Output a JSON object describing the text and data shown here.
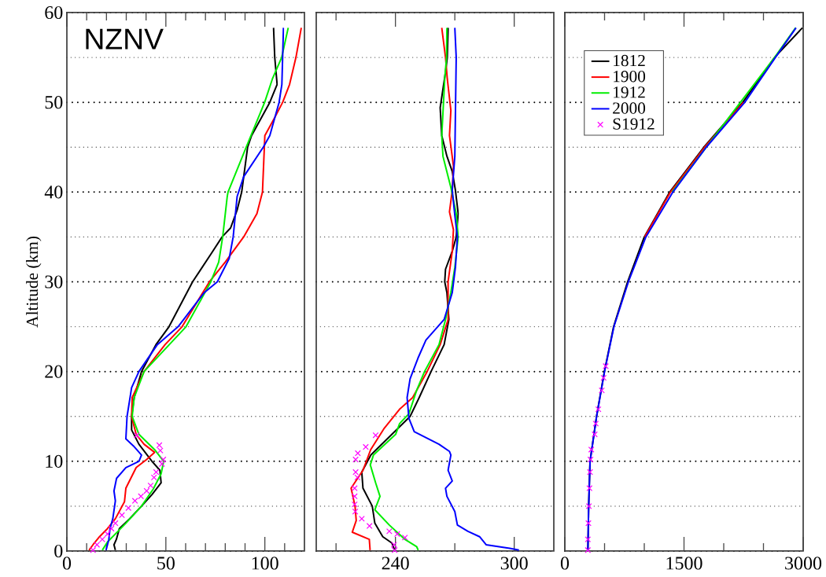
{
  "chart_data": [
    {
      "type": "line",
      "ylabel": "Altitude (km)",
      "annotations": [
        "NZNV"
      ],
      "xlim": [
        0,
        120
      ],
      "ylim": [
        0,
        60
      ],
      "xticks": [
        0,
        {
          "value": 10,
          "label": null
        },
        {
          "value": 20,
          "label": null
        },
        {
          "value": 30,
          "label": null
        },
        {
          "value": 40,
          "label": null
        },
        50,
        {
          "value": 60,
          "label": null
        },
        {
          "value": 70,
          "label": null
        },
        {
          "value": 80,
          "label": null
        },
        {
          "value": 90,
          "label": null
        },
        100,
        {
          "value": 110,
          "label": null
        }
      ],
      "yticks": [
        0,
        {
          "value": 5,
          "label": null
        },
        10,
        {
          "value": 15,
          "label": null
        },
        20,
        {
          "value": 25,
          "label": null
        },
        30,
        {
          "value": 35,
          "label": null
        },
        40,
        {
          "value": 45,
          "label": null
        },
        50,
        {
          "value": 55,
          "label": null
        },
        60
      ],
      "grid": "y",
      "series": [
        {
          "color": "#000000",
          "x": [
            24.5,
            23.8,
            25,
            26.5,
            31.7,
            37.7,
            43,
            47.6,
            47,
            43,
            36.4,
            32.7,
            32.7,
            34,
            37.7,
            45,
            51.6,
            63.5,
            73.4,
            78.4,
            82.7,
            86,
            88.3,
            91.3,
            93.3,
            102.5,
            106.2,
            105,
            104.4
          ],
          "values": [
            0.1,
            0.7,
            1.3,
            2.5,
            3.6,
            5,
            6.3,
            7.6,
            9,
            10,
            11.9,
            13.5,
            15,
            17.1,
            20,
            23,
            25,
            30,
            33.3,
            35,
            36,
            38,
            40,
            45,
            46.3,
            50,
            52,
            55,
            58.3
          ]
        },
        {
          "color": "#ff0000",
          "x": [
            11.2,
            13.2,
            16.5,
            20.5,
            24.5,
            29.1,
            29.8,
            35,
            40.3,
            44.3,
            39,
            35,
            32.7,
            33,
            39,
            49.6,
            58.2,
            72,
            80,
            89.3,
            96,
            98.8,
            100,
            105,
            109,
            112.5,
            115.7,
            118.4
          ],
          "values": [
            0.1,
            0.7,
            1.6,
            2.5,
            3.6,
            5.5,
            7,
            9.3,
            10.2,
            11,
            11.9,
            13,
            15,
            17.1,
            20,
            23,
            25,
            30,
            32.2,
            35,
            37.6,
            40,
            46.3,
            48.3,
            50,
            52,
            55,
            58.3
          ]
        },
        {
          "color": "#00ee00",
          "x": [
            17.9,
            20.5,
            25.8,
            29.8,
            37.7,
            43.6,
            47.6,
            48.9,
            44.3,
            36.4,
            33,
            34,
            39,
            60.2,
            72.7,
            76.7,
            78.7,
            81,
            81.4,
            90.6,
            99.9,
            103.8,
            108.5,
            111.8
          ],
          "values": [
            0.1,
            1,
            2.2,
            3.1,
            5,
            6.9,
            8.6,
            10,
            11.3,
            13,
            15,
            17.1,
            20,
            25,
            30,
            32.2,
            35,
            39.5,
            40,
            45,
            50,
            52.6,
            55,
            58.3
          ]
        },
        {
          "color": "#0000ff",
          "x": [
            19.8,
            21.2,
            21.8,
            23.2,
            24.5,
            23.8,
            25.1,
            29.8,
            36.4,
            37.7,
            33.7,
            29.8,
            30.4,
            32.7,
            36.4,
            45.7,
            56.2,
            69.4,
            76,
            82,
            84,
            86,
            89.3,
            99.2,
            102.5,
            107.2,
            108.6,
            109.4
          ],
          "values": [
            0.1,
            1.3,
            2.5,
            3.6,
            5.6,
            6.7,
            8.1,
            9.3,
            10,
            10.7,
            11.7,
            12.5,
            15,
            18.2,
            20,
            23,
            25,
            28.8,
            30,
            32.6,
            35,
            39.5,
            41.7,
            45,
            46.3,
            50,
            52,
            58.3
          ]
        },
        {
          "type": "scatter",
          "marker": "cross",
          "color": "#ff00ff",
          "x": [
            13.2,
            15.2,
            17.9,
            20.5,
            22.5,
            24.5,
            27.8,
            31.1,
            34.4,
            37.4,
            40.3,
            42.3,
            44,
            45.1,
            48,
            48.7,
            47.2,
            46.7,
            35.3
          ],
          "values": [
            0.1,
            0.7,
            1.3,
            1.9,
            2.5,
            3.1,
            4,
            4.8,
            5.6,
            6.1,
            6.7,
            7.3,
            8.2,
            8.8,
            9.7,
            10.2,
            11.2,
            11.8,
            12.9
          ]
        }
      ]
    },
    {
      "type": "line",
      "xlim": [
        200,
        320
      ],
      "ylim": [
        0,
        60
      ],
      "tick_labels": "x",
      "xticks": [
        {
          "value": 210,
          "label": null
        },
        240,
        {
          "value": 270,
          "label": null
        },
        300
      ],
      "yticks": [
        0,
        {
          "value": 5,
          "label": null
        },
        10,
        {
          "value": 15,
          "label": null
        },
        20,
        {
          "value": 25,
          "label": null
        },
        30,
        {
          "value": 35,
          "label": null
        },
        40,
        {
          "value": 45,
          "label": null
        },
        50,
        {
          "value": 55,
          "label": null
        },
        60
      ],
      "grid": "y",
      "series": [
        {
          "color": "#000000",
          "x": [
            239.6,
            238.2,
            233.6,
            229.6,
            228.3,
            223.6,
            223,
            227.6,
            238.2,
            247.4,
            252,
            258,
            264.6,
            267,
            266,
            264.9,
            265.3,
            268.7,
            270.7,
            271.7,
            270.3,
            268.7,
            266,
            263.4,
            262.6,
            265.3,
            266.2,
            266.6
          ],
          "values": [
            0.1,
            0.9,
            1.6,
            3.1,
            5,
            7,
            8.8,
            10.7,
            13,
            15,
            17.1,
            20,
            23,
            25.8,
            28.8,
            30,
            31.4,
            33.4,
            35,
            37.6,
            40.2,
            42.3,
            44,
            46.3,
            49.4,
            53.4,
            55,
            58.3
          ]
        },
        {
          "color": "#ff0000",
          "x": [
            227.2,
            226.8,
            218.2,
            220.2,
            219.6,
            217.6,
            223.6,
            227.5,
            234.1,
            242.1,
            248.7,
            256,
            262.6,
            266.6,
            266.6,
            268.7,
            269.3,
            267.3,
            268.7,
            269.3,
            267.3,
            268,
            266.2,
            265.3,
            263.4
          ],
          "values": [
            0.1,
            1.3,
            2.1,
            3.4,
            5,
            7,
            9,
            11.3,
            13.6,
            15.8,
            17.1,
            20,
            23,
            25.8,
            30,
            33.4,
            35.8,
            37.8,
            40.2,
            42.9,
            46.3,
            49.1,
            52.6,
            55,
            58.3
          ]
        },
        {
          "color": "#00ee00",
          "x": [
            251.5,
            250.7,
            244.8,
            236.9,
            229.6,
            232.2,
            230,
            227.3,
            228.9,
            240.1,
            242.1,
            246.8,
            250.7,
            254.7,
            262,
            265.3,
            268,
            270,
            271.7,
            270.7,
            268,
            264,
            263.4,
            264.9,
            265.8,
            266
          ],
          "values": [
            0.1,
            0.5,
            1.3,
            2.9,
            4.6,
            6.1,
            7.6,
            9.6,
            10.7,
            13,
            14.2,
            15.3,
            17.9,
            20,
            23,
            25.8,
            28.8,
            31.6,
            35,
            37.6,
            40.5,
            44,
            46.3,
            52.6,
            55,
            58.3
          ]
        },
        {
          "color": "#0000ff",
          "x": [
            302.4,
            297.7,
            285.8,
            282.5,
            276.6,
            271.3,
            270,
            266,
            265.3,
            268.7,
            266.6,
            268,
            267.3,
            262,
            249.5,
            246.8,
            245.9,
            247.4,
            251.4,
            255.4,
            264.6,
            268.7,
            270.3,
            271.3,
            270,
            268.7,
            270,
            270.7,
            270
          ],
          "values": [
            0.1,
            0.3,
            0.7,
            1.6,
            2.2,
            2.9,
            4.4,
            6.1,
            7,
            7.8,
            9,
            10.7,
            11.1,
            11.9,
            13.3,
            14.8,
            17.1,
            19.2,
            21.5,
            23.5,
            25.8,
            28.8,
            31.6,
            35,
            37.4,
            40.2,
            44,
            55,
            58.3
          ]
        },
        {
          "type": "scatter",
          "marker": "cross",
          "color": "#ff00ff",
          "x": [
            239.6,
            239.3,
            244.8,
            240.9,
            236.9,
            226.9,
            223,
            219.7,
            219.4,
            219.4,
            219.4,
            220.8,
            219.9,
            219.9,
            221,
            225,
            230
          ],
          "values": [
            0.1,
            0.7,
            1.5,
            1.9,
            2.2,
            2.8,
            3.6,
            4.4,
            5.2,
            6.1,
            7,
            8.2,
            8.8,
            10.2,
            10.9,
            11.6,
            12.9
          ]
        }
      ]
    },
    {
      "type": "line",
      "xlim": [
        0,
        3000
      ],
      "ylim": [
        0,
        60
      ],
      "tick_labels": "x",
      "legend": "top left",
      "xticks": [
        0,
        {
          "value": 500,
          "label": null
        },
        {
          "value": 1000,
          "label": null
        },
        1500,
        {
          "value": 2000,
          "label": null
        },
        {
          "value": 2500,
          "label": null
        },
        3000
      ],
      "yticks": [
        0,
        {
          "value": 5,
          "label": null
        },
        10,
        {
          "value": 15,
          "label": null
        },
        20,
        {
          "value": 25,
          "label": null
        },
        30,
        {
          "value": 35,
          "label": null
        },
        40,
        {
          "value": 45,
          "label": null
        },
        50,
        {
          "value": 55,
          "label": null
        },
        60
      ],
      "grid": "y",
      "series": [
        {
          "name": "1812",
          "color": "#000000",
          "x": [
            290,
            300,
            317,
            399,
            498,
            614,
            790,
            1000,
            1320,
            1750,
            2240,
            2640,
            2990
          ],
          "values": [
            0,
            5,
            10,
            15,
            20,
            25,
            30,
            35,
            40,
            45,
            50,
            55,
            58.3
          ]
        },
        {
          "name": "1900",
          "color": "#ff0000",
          "x": [
            1005,
            1330,
            1760,
            2250
          ],
          "values": [
            35,
            40,
            45,
            50
          ]
        },
        {
          "name": "1912",
          "color": "#00ee00",
          "x": [
            1350,
            2640,
            2905
          ],
          "values": [
            40,
            55,
            58.3
          ]
        },
        {
          "name": "2000",
          "color": "#0000ff",
          "x": [
            290,
            300,
            318,
            400,
            500,
            618,
            800,
            1020,
            1360,
            1780,
            2265,
            2650,
            2910
          ],
          "values": [
            0,
            5,
            10,
            15,
            20,
            25,
            30,
            35,
            40,
            45,
            50,
            55,
            58.3
          ]
        },
        {
          "name": "S1912",
          "type": "scatter",
          "marker": "cross",
          "color": "#ff00ff",
          "x": [
            290,
            290,
            297,
            303,
            310,
            317,
            323,
            333,
            376,
            389,
            422,
            465,
            488,
            515
          ],
          "values": [
            0.1,
            1.3,
            3.1,
            5,
            7,
            8.8,
            10.2,
            11.3,
            13,
            14.2,
            15.8,
            17.9,
            19.3,
            20.6
          ]
        }
      ]
    }
  ]
}
